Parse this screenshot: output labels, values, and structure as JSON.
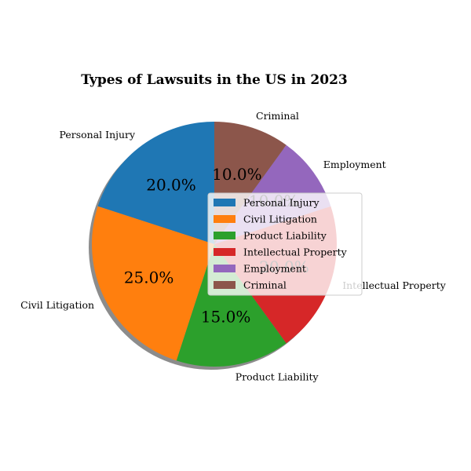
{
  "chart_data": {
    "type": "pie",
    "title": "Types of Lawsuits in the US in 2023",
    "categories": [
      "Personal Injury",
      "Civil Litigation",
      "Product Liability",
      "Intellectual Property",
      "Employment",
      "Criminal"
    ],
    "values": [
      20.0,
      25.0,
      15.0,
      20.0,
      10.0,
      10.0
    ],
    "value_labels": [
      "20.0%",
      "25.0%",
      "15.0%",
      "20.0%",
      "10.0%",
      "10.0%"
    ],
    "colors": [
      "#1f77b4",
      "#ff7f0e",
      "#2ca02c",
      "#d62728",
      "#9467bd",
      "#8c564b"
    ],
    "start_angle_deg": 90,
    "direction": "counterclockwise",
    "shadow": true,
    "legend": {
      "placement": "center-right",
      "entries": [
        "Personal Injury",
        "Civil Litigation",
        "Product Liability",
        "Intellectual Property",
        "Employment",
        "Criminal"
      ]
    }
  }
}
